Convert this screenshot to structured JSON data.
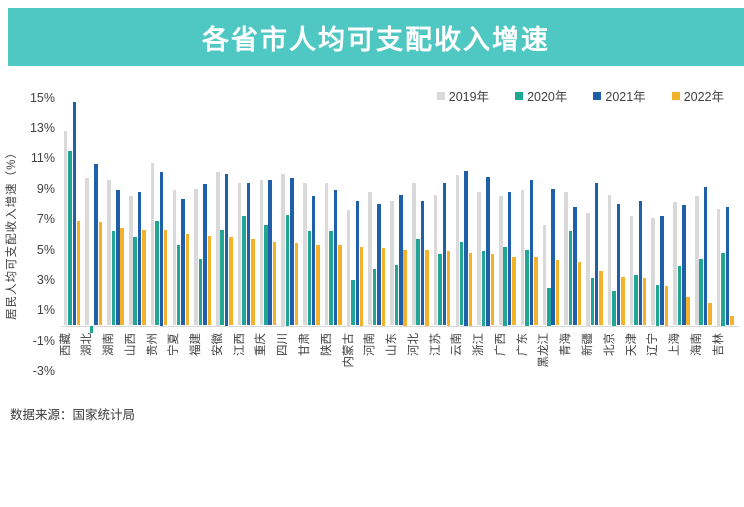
{
  "header": {
    "title": "各省市人均可支配收入增速",
    "bg_color": "#4FC8C3",
    "text_color": "#ffffff"
  },
  "footer": {
    "source": "数据来源：国家统计局"
  },
  "chart_data": {
    "type": "bar",
    "title": "各省市人均可支配收入增速",
    "ylabel": "居民人均可支配收入增速（%）",
    "xlabel": "",
    "ylim": [
      -3,
      15
    ],
    "y_ticks": [
      15,
      13,
      11,
      9,
      7,
      5,
      3,
      1,
      -1,
      -3
    ],
    "y_tick_labels": [
      "15%",
      "13%",
      "11%",
      "9%",
      "7%",
      "5%",
      "3%",
      "1%",
      "-1%",
      "-3%"
    ],
    "grid": false,
    "legend_position": "top-right",
    "categories": [
      "西藏",
      "湖北",
      "湖南",
      "山西",
      "贵州",
      "宁夏",
      "福建",
      "安徽",
      "江西",
      "重庆",
      "四川",
      "甘肃",
      "陕西",
      "内蒙古",
      "河南",
      "山东",
      "河北",
      "江苏",
      "云南",
      "浙江",
      "广西",
      "广东",
      "黑龙江",
      "青海",
      "新疆",
      "北京",
      "天津",
      "辽宁",
      "上海",
      "海南",
      "吉林"
    ],
    "series": [
      {
        "name": "2019年",
        "color": "#D9D9D9",
        "values": [
          12.8,
          9.7,
          9.6,
          8.5,
          10.7,
          8.9,
          9.0,
          10.1,
          9.4,
          9.6,
          10.0,
          9.4,
          9.4,
          7.6,
          8.8,
          8.2,
          9.4,
          8.6,
          9.9,
          8.8,
          8.5,
          8.9,
          6.6,
          8.8,
          7.4,
          8.6,
          7.2,
          7.1,
          8.1,
          8.5,
          7.7
        ]
      },
      {
        "name": "2020年",
        "color": "#21A695",
        "values": [
          11.5,
          -0.5,
          6.2,
          5.8,
          6.9,
          5.3,
          4.4,
          6.3,
          7.2,
          6.6,
          7.3,
          6.2,
          6.2,
          3.0,
          3.7,
          4.0,
          5.7,
          4.7,
          5.5,
          4.9,
          5.2,
          5.0,
          2.5,
          6.2,
          3.1,
          2.3,
          3.3,
          2.7,
          3.9,
          4.4,
          4.8
        ]
      },
      {
        "name": "2021年",
        "color": "#1F60A9",
        "values": [
          14.7,
          10.6,
          8.9,
          8.8,
          10.1,
          8.3,
          9.3,
          10.0,
          9.4,
          9.6,
          9.7,
          8.5,
          8.9,
          8.2,
          8.0,
          8.6,
          8.2,
          9.4,
          10.2,
          9.8,
          8.8,
          9.6,
          9.0,
          7.8,
          9.4,
          8.0,
          8.2,
          7.2,
          7.9,
          9.1,
          7.8
        ]
      },
      {
        "name": "2022年",
        "color": "#F3B229",
        "values": [
          6.9,
          6.8,
          6.4,
          6.3,
          6.3,
          6.0,
          5.9,
          5.8,
          5.7,
          5.5,
          5.4,
          5.3,
          5.3,
          5.2,
          5.1,
          5.0,
          5.0,
          4.9,
          4.8,
          4.7,
          4.5,
          4.5,
          4.3,
          4.2,
          3.6,
          3.2,
          3.1,
          2.6,
          1.9,
          1.5,
          0.6
        ]
      }
    ]
  }
}
